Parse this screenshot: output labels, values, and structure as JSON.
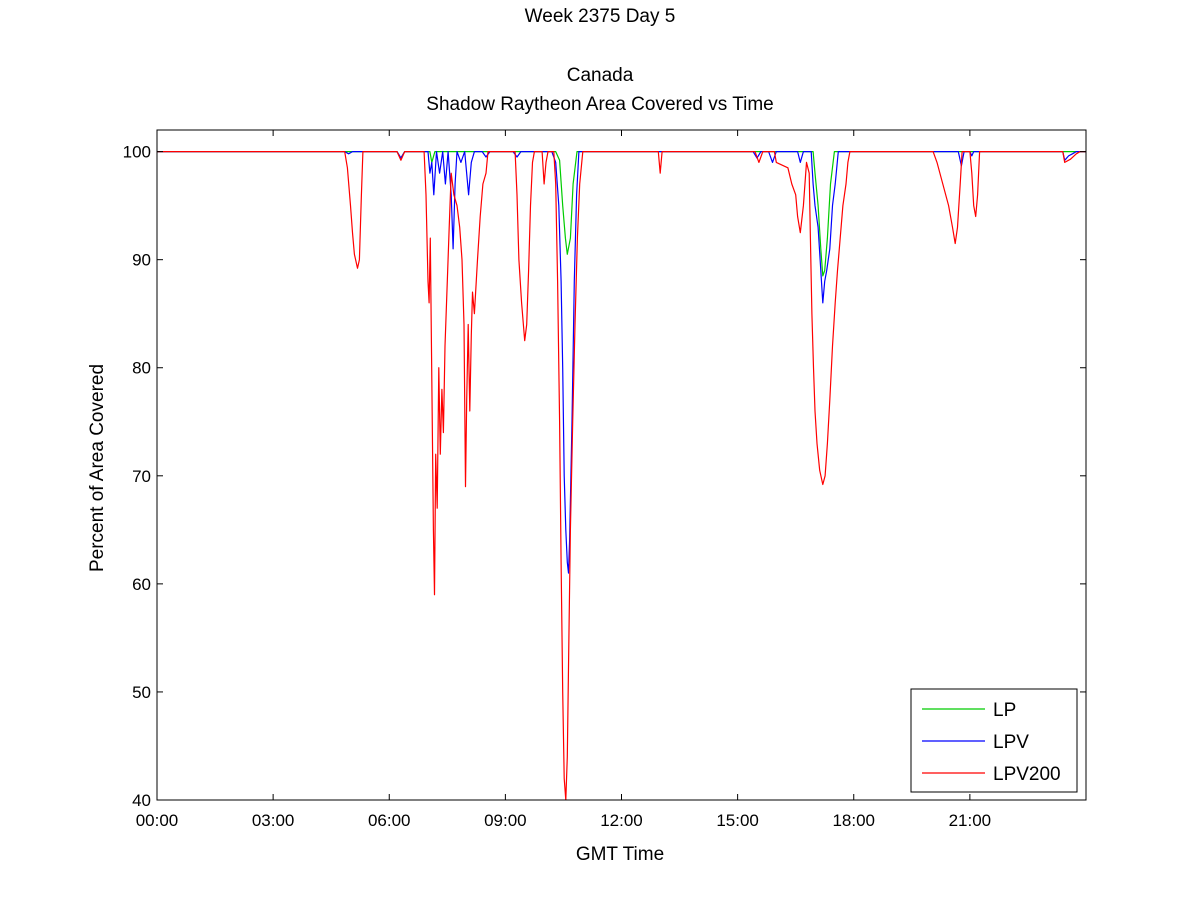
{
  "header": {
    "week_day": "Week 2375 Day 5",
    "region": "Canada",
    "title": "Shadow Raytheon Area Covered vs Time"
  },
  "chart_data": {
    "type": "line",
    "xlabel": "GMT Time",
    "ylabel": "Percent of Area Covered",
    "x_unit": "hours",
    "xlim": [
      0,
      24
    ],
    "ylim": [
      40,
      102
    ],
    "x_ticks": [
      0,
      3,
      6,
      9,
      12,
      15,
      18,
      21
    ],
    "x_tick_labels": [
      "00:00",
      "03:00",
      "06:00",
      "09:00",
      "12:00",
      "15:00",
      "18:00",
      "21:00"
    ],
    "y_ticks": [
      40,
      50,
      60,
      70,
      80,
      90,
      100
    ],
    "y_tick_labels": [
      "40",
      "50",
      "60",
      "70",
      "80",
      "90",
      "100"
    ],
    "grid": false,
    "legend_position": "bottom-right",
    "series": [
      {
        "name": "LP",
        "color": "#00cc00",
        "points": [
          [
            0,
            100
          ],
          [
            6.2,
            100
          ],
          [
            6.3,
            99.4
          ],
          [
            6.4,
            100
          ],
          [
            7.05,
            100
          ],
          [
            7.1,
            99.0
          ],
          [
            7.18,
            100
          ],
          [
            10.3,
            100
          ],
          [
            10.4,
            99.2
          ],
          [
            10.48,
            95
          ],
          [
            10.55,
            92
          ],
          [
            10.6,
            90.5
          ],
          [
            10.68,
            92
          ],
          [
            10.75,
            97
          ],
          [
            10.85,
            100
          ],
          [
            16.95,
            100
          ],
          [
            17.0,
            98
          ],
          [
            17.08,
            95
          ],
          [
            17.15,
            91
          ],
          [
            17.2,
            88.5
          ],
          [
            17.25,
            89
          ],
          [
            17.32,
            92
          ],
          [
            17.4,
            97
          ],
          [
            17.5,
            100
          ],
          [
            24,
            100
          ]
        ]
      },
      {
        "name": "LPV",
        "color": "#0000ff",
        "points": [
          [
            0,
            100
          ],
          [
            4.85,
            100
          ],
          [
            4.95,
            99.8
          ],
          [
            5.05,
            100
          ],
          [
            6.2,
            100
          ],
          [
            6.3,
            99.4
          ],
          [
            6.4,
            100
          ],
          [
            7.0,
            100
          ],
          [
            7.05,
            98
          ],
          [
            7.1,
            99
          ],
          [
            7.15,
            96
          ],
          [
            7.22,
            100
          ],
          [
            7.3,
            98
          ],
          [
            7.38,
            100
          ],
          [
            7.45,
            97
          ],
          [
            7.52,
            100
          ],
          [
            7.6,
            96
          ],
          [
            7.65,
            91
          ],
          [
            7.7,
            97
          ],
          [
            7.75,
            100
          ],
          [
            7.85,
            99
          ],
          [
            7.95,
            100
          ],
          [
            8.05,
            96
          ],
          [
            8.12,
            99
          ],
          [
            8.2,
            100
          ],
          [
            8.4,
            100
          ],
          [
            8.5,
            99.5
          ],
          [
            8.6,
            100
          ],
          [
            9.2,
            100
          ],
          [
            9.3,
            99.5
          ],
          [
            9.4,
            100
          ],
          [
            10.2,
            100
          ],
          [
            10.3,
            99
          ],
          [
            10.38,
            95
          ],
          [
            10.44,
            88
          ],
          [
            10.48,
            80
          ],
          [
            10.52,
            70
          ],
          [
            10.56,
            65
          ],
          [
            10.6,
            62
          ],
          [
            10.63,
            61
          ],
          [
            10.66,
            64
          ],
          [
            10.72,
            75
          ],
          [
            10.78,
            88
          ],
          [
            10.84,
            96
          ],
          [
            10.9,
            100
          ],
          [
            15.4,
            100
          ],
          [
            15.5,
            99.4
          ],
          [
            15.6,
            100
          ],
          [
            15.8,
            100
          ],
          [
            15.9,
            99
          ],
          [
            16.0,
            100
          ],
          [
            16.55,
            100
          ],
          [
            16.62,
            99
          ],
          [
            16.7,
            100
          ],
          [
            16.9,
            100
          ],
          [
            16.95,
            97
          ],
          [
            17.0,
            95
          ],
          [
            17.08,
            93
          ],
          [
            17.15,
            89
          ],
          [
            17.2,
            86
          ],
          [
            17.25,
            88
          ],
          [
            17.3,
            89
          ],
          [
            17.38,
            91
          ],
          [
            17.45,
            95
          ],
          [
            17.52,
            97
          ],
          [
            17.6,
            100
          ],
          [
            20.7,
            100
          ],
          [
            20.78,
            98.7
          ],
          [
            20.85,
            100
          ],
          [
            21.0,
            100
          ],
          [
            21.05,
            99.6
          ],
          [
            21.1,
            100
          ],
          [
            23.4,
            100
          ],
          [
            23.45,
            99.2
          ],
          [
            23.55,
            99.6
          ],
          [
            23.65,
            99.8
          ],
          [
            23.75,
            100
          ],
          [
            24,
            100
          ]
        ]
      },
      {
        "name": "LPV200",
        "color": "#ff0000",
        "points": [
          [
            0,
            100
          ],
          [
            4.85,
            100
          ],
          [
            4.92,
            98.5
          ],
          [
            5.0,
            95
          ],
          [
            5.05,
            92.5
          ],
          [
            5.1,
            90.5
          ],
          [
            5.18,
            89.2
          ],
          [
            5.23,
            90
          ],
          [
            5.28,
            96
          ],
          [
            5.32,
            100
          ],
          [
            6.2,
            100
          ],
          [
            6.3,
            99.2
          ],
          [
            6.4,
            100
          ],
          [
            6.9,
            100
          ],
          [
            6.95,
            96
          ],
          [
            7.0,
            88
          ],
          [
            7.03,
            86
          ],
          [
            7.06,
            92
          ],
          [
            7.1,
            79
          ],
          [
            7.14,
            65
          ],
          [
            7.17,
            59
          ],
          [
            7.2,
            72
          ],
          [
            7.24,
            67
          ],
          [
            7.28,
            80
          ],
          [
            7.32,
            72
          ],
          [
            7.36,
            78
          ],
          [
            7.4,
            74
          ],
          [
            7.44,
            82
          ],
          [
            7.5,
            88
          ],
          [
            7.55,
            93
          ],
          [
            7.6,
            98
          ],
          [
            7.67,
            96
          ],
          [
            7.75,
            95
          ],
          [
            7.82,
            93
          ],
          [
            7.88,
            90
          ],
          [
            7.93,
            84
          ],
          [
            7.97,
            69
          ],
          [
            8.0,
            77
          ],
          [
            8.04,
            84
          ],
          [
            8.08,
            76
          ],
          [
            8.12,
            83
          ],
          [
            8.15,
            87
          ],
          [
            8.2,
            85
          ],
          [
            8.28,
            90
          ],
          [
            8.35,
            94
          ],
          [
            8.42,
            97
          ],
          [
            8.5,
            98
          ],
          [
            8.55,
            100
          ],
          [
            9.25,
            100
          ],
          [
            9.3,
            96
          ],
          [
            9.35,
            90
          ],
          [
            9.42,
            86
          ],
          [
            9.5,
            82.5
          ],
          [
            9.55,
            84
          ],
          [
            9.6,
            89
          ],
          [
            9.65,
            95
          ],
          [
            9.7,
            99
          ],
          [
            9.75,
            100
          ],
          [
            9.95,
            100
          ],
          [
            10.0,
            97
          ],
          [
            10.05,
            99
          ],
          [
            10.1,
            100
          ],
          [
            10.25,
            100
          ],
          [
            10.3,
            97
          ],
          [
            10.35,
            88
          ],
          [
            10.4,
            75
          ],
          [
            10.44,
            62
          ],
          [
            10.48,
            50
          ],
          [
            10.52,
            42
          ],
          [
            10.56,
            40
          ],
          [
            10.6,
            44
          ],
          [
            10.64,
            55
          ],
          [
            10.68,
            65
          ],
          [
            10.74,
            75
          ],
          [
            10.8,
            84
          ],
          [
            10.86,
            92
          ],
          [
            10.92,
            97
          ],
          [
            11.0,
            100
          ],
          [
            12.95,
            100
          ],
          [
            13.0,
            98
          ],
          [
            13.05,
            100
          ],
          [
            15.45,
            100
          ],
          [
            15.55,
            99
          ],
          [
            15.65,
            100
          ],
          [
            15.95,
            100
          ],
          [
            16.0,
            99
          ],
          [
            16.3,
            98.5
          ],
          [
            16.4,
            97
          ],
          [
            16.5,
            96
          ],
          [
            16.55,
            94
          ],
          [
            16.62,
            92.5
          ],
          [
            16.7,
            95
          ],
          [
            16.78,
            99
          ],
          [
            16.85,
            98
          ],
          [
            16.88,
            92
          ],
          [
            16.92,
            85
          ],
          [
            16.96,
            80
          ],
          [
            17.0,
            76
          ],
          [
            17.05,
            73
          ],
          [
            17.12,
            70.5
          ],
          [
            17.2,
            69.2
          ],
          [
            17.26,
            70
          ],
          [
            17.32,
            73
          ],
          [
            17.38,
            77
          ],
          [
            17.45,
            82
          ],
          [
            17.52,
            86
          ],
          [
            17.58,
            89
          ],
          [
            17.65,
            92
          ],
          [
            17.72,
            95
          ],
          [
            17.8,
            97
          ],
          [
            17.85,
            99
          ],
          [
            17.9,
            100
          ],
          [
            20.05,
            100
          ],
          [
            20.15,
            99
          ],
          [
            20.3,
            97
          ],
          [
            20.45,
            95
          ],
          [
            20.55,
            93
          ],
          [
            20.62,
            91.5
          ],
          [
            20.68,
            93
          ],
          [
            20.75,
            97
          ],
          [
            20.8,
            100
          ],
          [
            21.0,
            100
          ],
          [
            21.05,
            98
          ],
          [
            21.1,
            95
          ],
          [
            21.15,
            94
          ],
          [
            21.2,
            96
          ],
          [
            21.25,
            100
          ],
          [
            23.4,
            100
          ],
          [
            23.45,
            99
          ],
          [
            23.6,
            99.3
          ],
          [
            23.75,
            99.8
          ],
          [
            23.85,
            100
          ],
          [
            24,
            100
          ]
        ]
      }
    ]
  }
}
